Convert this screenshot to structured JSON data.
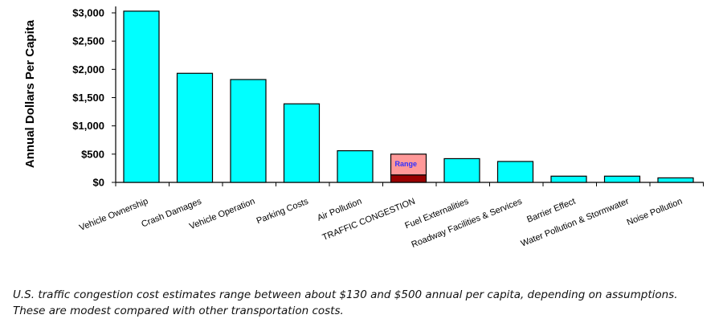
{
  "chart_data": {
    "type": "bar",
    "ylabel": "Annual Dollars Per Capita",
    "xlabel": "",
    "ylim": [
      0,
      3000
    ],
    "yticks": [
      0,
      500,
      1000,
      1500,
      2000,
      2500,
      3000
    ],
    "ytick_labels": [
      "$0",
      "$500",
      "$1,000",
      "$1,500",
      "$2,000",
      "$2,500",
      "$3,000"
    ],
    "categories": [
      "Vehicle Ownership",
      "Crash Damages",
      "Vehicle Operation",
      "Parking Costs",
      "Air Pollution",
      "TRAFFIC CONGESTION",
      "Fuel Externalities",
      "Roadway Facilities & Services",
      "Barrier Effect",
      "Water Pollution & Stormwater",
      "Noise Pollution"
    ],
    "values": [
      3030,
      1930,
      1820,
      1390,
      560,
      500,
      420,
      370,
      110,
      110,
      80
    ],
    "range": {
      "category": "TRAFFIC CONGESTION",
      "low": 130,
      "high": 500,
      "label": "Range"
    },
    "colors": {
      "bar": "#00ffff",
      "range_high": "#ff9999",
      "range_low": "#990000",
      "outline": "#000000"
    },
    "grid": false
  },
  "caption": "U.S. traffic congestion cost estimates range between about $130 and $500 annual per capita, depending on assumptions. These are modest compared with other transportation costs."
}
